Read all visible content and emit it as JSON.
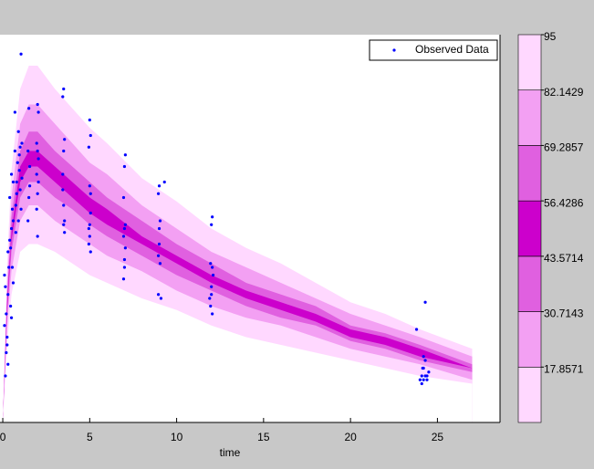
{
  "chart_data": {
    "type": "area",
    "xlabel": "time",
    "xlim": [
      -0.16,
      28.6
    ],
    "xticks": [
      0,
      5,
      10,
      15,
      20,
      25
    ],
    "ylim": [
      0,
      100
    ],
    "x": [
      0,
      0.25,
      0.5,
      1,
      1.5,
      2,
      3,
      4,
      5,
      6,
      8,
      10,
      12,
      14,
      16,
      18,
      20,
      22,
      24,
      27
    ],
    "series": [
      {
        "color": "#ffffff",
        "values": [
          0,
          20,
          33,
          44,
          46,
          46,
          44,
          41,
          38,
          36,
          32,
          29,
          25,
          22,
          20,
          18,
          16,
          14,
          12,
          10
        ]
      },
      {
        "color": "#ffd8ff",
        "values": [
          0,
          25,
          39,
          52,
          56,
          56,
          52,
          49,
          46,
          43,
          39,
          34,
          30,
          27,
          25,
          22,
          19,
          17,
          15,
          11
        ]
      },
      {
        "color": "#f3a0f3",
        "values": [
          0,
          27,
          44,
          58,
          62,
          62,
          58,
          55,
          51,
          48,
          43,
          38,
          34,
          30,
          27,
          25,
          21,
          19,
          16,
          13
        ]
      },
      {
        "color": "#e060e0",
        "values": [
          0,
          29,
          47,
          62,
          66,
          66,
          62,
          58,
          54,
          51,
          46,
          41,
          36,
          32,
          29,
          26,
          22,
          20,
          17,
          14
        ]
      },
      {
        "color": "#cc00cc",
        "values": [
          0,
          31,
          49,
          66,
          70,
          70,
          66,
          62,
          58,
          55,
          48,
          43,
          38,
          34,
          31,
          28,
          24,
          22,
          19,
          14
        ]
      },
      {
        "color": "#e060e0",
        "values": [
          0,
          33,
          53,
          70,
          75,
          75,
          70,
          66,
          62,
          58,
          52,
          46,
          41,
          36,
          33,
          30,
          25,
          23,
          20,
          15
        ]
      },
      {
        "color": "#f3a0f3",
        "values": [
          0,
          36,
          58,
          77,
          82,
          82,
          77,
          72,
          67,
          64,
          56,
          50,
          44,
          40,
          36,
          32,
          28,
          25,
          22,
          17
        ]
      },
      {
        "color": "#ffd8ff",
        "values": [
          0,
          41,
          65,
          86,
          92,
          92,
          86,
          81,
          76,
          72,
          63,
          57,
          50,
          45,
          41,
          36,
          31,
          28,
          24,
          19
        ]
      }
    ],
    "observed": {
      "name": "Observed Data",
      "color": "#0000ff",
      "x": [
        0.1,
        0.15,
        0.2,
        0.1,
        0.25,
        0.2,
        0.15,
        0.3,
        0.25,
        0.3,
        0.35,
        0.3,
        0.45,
        0.5,
        0.55,
        0.4,
        0.6,
        0.5,
        0.45,
        0.55,
        0.6,
        0.5,
        0.4,
        0.6,
        0.7,
        0.8,
        0.75,
        0.85,
        0.9,
        0.7,
        0.8,
        0.9,
        0.75,
        1.05,
        1.0,
        1.1,
        0.95,
        1.0,
        1.05,
        1.1,
        0.95,
        1.5,
        1.45,
        1.55,
        1.5,
        1.45,
        1.55,
        2.0,
        2.05,
        1.95,
        2.0,
        2.05,
        1.95,
        2.0,
        2.05,
        1.95,
        2.0,
        3.5,
        3.45,
        3.55,
        3.5,
        3.45,
        3.55,
        3.5,
        3.45,
        3.55,
        3.5,
        5.0,
        5.05,
        4.95,
        5.0,
        5.05,
        4.95,
        5.0,
        5.05,
        4.95,
        5.0,
        5.05,
        7.05,
        7.0,
        6.95,
        7.0,
        7.05,
        6.95,
        7.0,
        7.05,
        6.95,
        7.0,
        9.0,
        8.95,
        9.05,
        9.0,
        8.95,
        9.05,
        9.0,
        8.95,
        9.1,
        9.3,
        12.05,
        12.0,
        11.95,
        12.05,
        12.0,
        11.95,
        12.05,
        12.0,
        11.9,
        12.1,
        23.8,
        24.0,
        24.1,
        24.2,
        24.3,
        24.1,
        24.2,
        24.4,
        24.3,
        24.2,
        24.3,
        24.15,
        24.5,
        24.4
      ],
      "values": [
        38,
        35,
        28,
        25,
        22,
        18,
        12,
        15,
        20,
        33,
        40,
        44,
        30,
        50,
        55,
        58,
        62,
        64,
        45,
        40,
        36,
        27,
        47,
        52,
        70,
        59,
        56,
        67,
        75,
        80,
        62,
        52,
        49,
        95,
        71,
        72,
        65,
        60,
        55,
        63,
        69,
        81,
        70,
        61,
        58,
        52,
        66,
        82,
        80,
        72,
        70,
        68,
        64,
        59,
        62,
        55,
        48,
        86,
        84,
        73,
        70,
        64,
        52,
        51,
        60,
        49,
        56,
        78,
        74,
        71,
        61,
        54,
        50,
        48,
        44,
        46,
        51,
        59,
        69,
        66,
        58,
        50,
        45,
        37,
        40,
        51,
        48,
        42,
        61,
        59,
        52,
        50,
        43,
        41,
        46,
        33,
        32,
        62,
        53,
        51,
        41,
        40,
        35,
        30,
        28,
        33,
        32,
        38,
        24,
        11,
        10,
        11,
        12,
        12,
        14,
        11,
        31,
        17,
        16,
        14,
        13,
        12
      ]
    },
    "legend": "upper right",
    "colorbar": {
      "lim": [
        5,
        95
      ],
      "ticks": [
        17.8571,
        30.7143,
        43.5714,
        56.4286,
        69.2857,
        82.1429,
        95
      ]
    }
  }
}
